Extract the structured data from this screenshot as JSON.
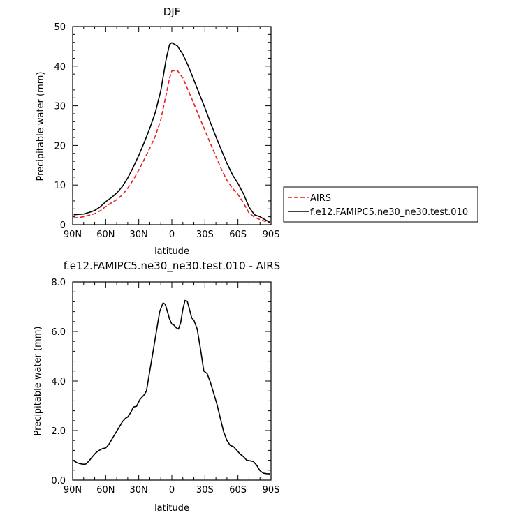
{
  "chart_data": [
    {
      "type": "line",
      "title": "DJF",
      "xlabel": "latitude",
      "ylabel": "Precipitable water (mm)",
      "xlim": [
        90,
        -90
      ],
      "ylim": [
        0,
        50
      ],
      "xticks": [
        90,
        60,
        30,
        0,
        -30,
        -60,
        -90
      ],
      "xtick_labels": [
        "90N",
        "60N",
        "30N",
        "0",
        "30S",
        "60S",
        "90S"
      ],
      "yticks": [
        0,
        10,
        20,
        30,
        40,
        50
      ],
      "ytick_labels": [
        "0",
        "10",
        "20",
        "30",
        "40",
        "50"
      ],
      "legend": {
        "placement": "right",
        "entries": [
          "AIRS",
          "f.e12.FAMIPC5.ne30_ne30.test.010"
        ]
      },
      "series": [
        {
          "name": "AIRS",
          "color": "#e8201e",
          "dash": "dashed",
          "x": [
            89,
            85,
            80,
            75,
            70,
            65,
            60,
            55,
            50,
            45,
            40,
            35,
            30,
            25,
            20,
            15,
            10,
            5,
            2,
            0,
            -5,
            -10,
            -15,
            -20,
            -25,
            -30,
            -35,
            -40,
            -45,
            -50,
            -55,
            -60,
            -65,
            -70,
            -75,
            -80,
            -85,
            -89
          ],
          "y": [
            1.7,
            1.8,
            2.0,
            2.4,
            2.8,
            3.5,
            4.6,
            5.5,
            6.3,
            7.5,
            9.2,
            11.3,
            13.8,
            16.5,
            19.3,
            22.3,
            26.5,
            33.0,
            37.0,
            38.8,
            38.9,
            37.0,
            33.8,
            30.5,
            27.2,
            23.8,
            20.5,
            17.2,
            14.0,
            11.2,
            9.2,
            7.6,
            5.5,
            3.0,
            1.9,
            1.3,
            0.8,
            0.5
          ]
        },
        {
          "name": "f.e12.FAMIPC5.ne30_ne30.test.010",
          "color": "#000000",
          "dash": "solid",
          "x": [
            89,
            85,
            80,
            75,
            70,
            65,
            60,
            55,
            50,
            45,
            40,
            35,
            30,
            25,
            20,
            15,
            10,
            5,
            2,
            0,
            -5,
            -10,
            -15,
            -20,
            -25,
            -30,
            -35,
            -40,
            -45,
            -50,
            -55,
            -60,
            -65,
            -70,
            -75,
            -80,
            -85,
            -89
          ],
          "y": [
            2.5,
            2.6,
            2.7,
            3.1,
            3.6,
            4.5,
            5.8,
            6.8,
            8.0,
            9.6,
            11.8,
            14.5,
            17.5,
            20.8,
            24.3,
            28.3,
            33.8,
            42.0,
            45.5,
            45.9,
            45.1,
            43.0,
            40.0,
            36.5,
            33.0,
            29.5,
            25.8,
            22.2,
            18.8,
            15.5,
            12.6,
            10.4,
            7.8,
            4.5,
            2.5,
            2.0,
            1.2,
            0.6
          ]
        }
      ]
    },
    {
      "type": "line",
      "title": "f.e12.FAMIPC5.ne30_ne30.test.010 - AIRS",
      "xlabel": "latitude",
      "ylabel": "Precipitable water (mm)",
      "xlim": [
        90,
        -90
      ],
      "ylim": [
        0,
        8
      ],
      "xticks": [
        90,
        60,
        30,
        0,
        -30,
        -60,
        -90
      ],
      "xtick_labels": [
        "90N",
        "60N",
        "30N",
        "0",
        "30S",
        "60S",
        "90S"
      ],
      "yticks": [
        0,
        2,
        4,
        6,
        8
      ],
      "ytick_labels": [
        "0.0",
        "2.0",
        "4.0",
        "6.0",
        "8.0"
      ],
      "series": [
        {
          "name": "f.e12.FAMIPC5.ne30_ne30.test.010 - AIRS",
          "color": "#000000",
          "dash": "solid",
          "x": [
            89,
            86,
            83,
            80,
            78,
            75,
            72,
            69,
            66,
            63,
            60,
            57,
            54,
            51,
            48,
            45,
            42,
            40,
            37,
            35,
            32,
            29,
            27,
            25,
            23,
            20,
            17,
            14,
            11,
            8,
            6,
            4,
            2,
            0,
            -2,
            -4,
            -6,
            -8,
            -10,
            -12,
            -14,
            -16,
            -18,
            -20,
            -23,
            -26,
            -29,
            -32,
            -35,
            -38,
            -41,
            -44,
            -47,
            -50,
            -53,
            -56,
            -59,
            -62,
            -65,
            -68,
            -71,
            -74,
            -77,
            -80,
            -83,
            -86,
            -89
          ],
          "y": [
            0.78,
            0.7,
            0.66,
            0.64,
            0.65,
            0.78,
            0.95,
            1.1,
            1.2,
            1.27,
            1.3,
            1.45,
            1.68,
            1.9,
            2.12,
            2.35,
            2.5,
            2.55,
            2.75,
            2.95,
            2.98,
            3.25,
            3.35,
            3.45,
            3.6,
            4.4,
            5.2,
            6.0,
            6.8,
            7.15,
            7.1,
            6.8,
            6.5,
            6.3,
            6.25,
            6.15,
            6.1,
            6.35,
            6.9,
            7.25,
            7.22,
            6.9,
            6.55,
            6.45,
            6.1,
            5.3,
            4.4,
            4.3,
            3.95,
            3.5,
            3.05,
            2.5,
            1.95,
            1.6,
            1.4,
            1.35,
            1.2,
            1.05,
            0.95,
            0.8,
            0.78,
            0.75,
            0.6,
            0.38,
            0.28,
            0.26,
            0.25
          ]
        }
      ]
    }
  ]
}
